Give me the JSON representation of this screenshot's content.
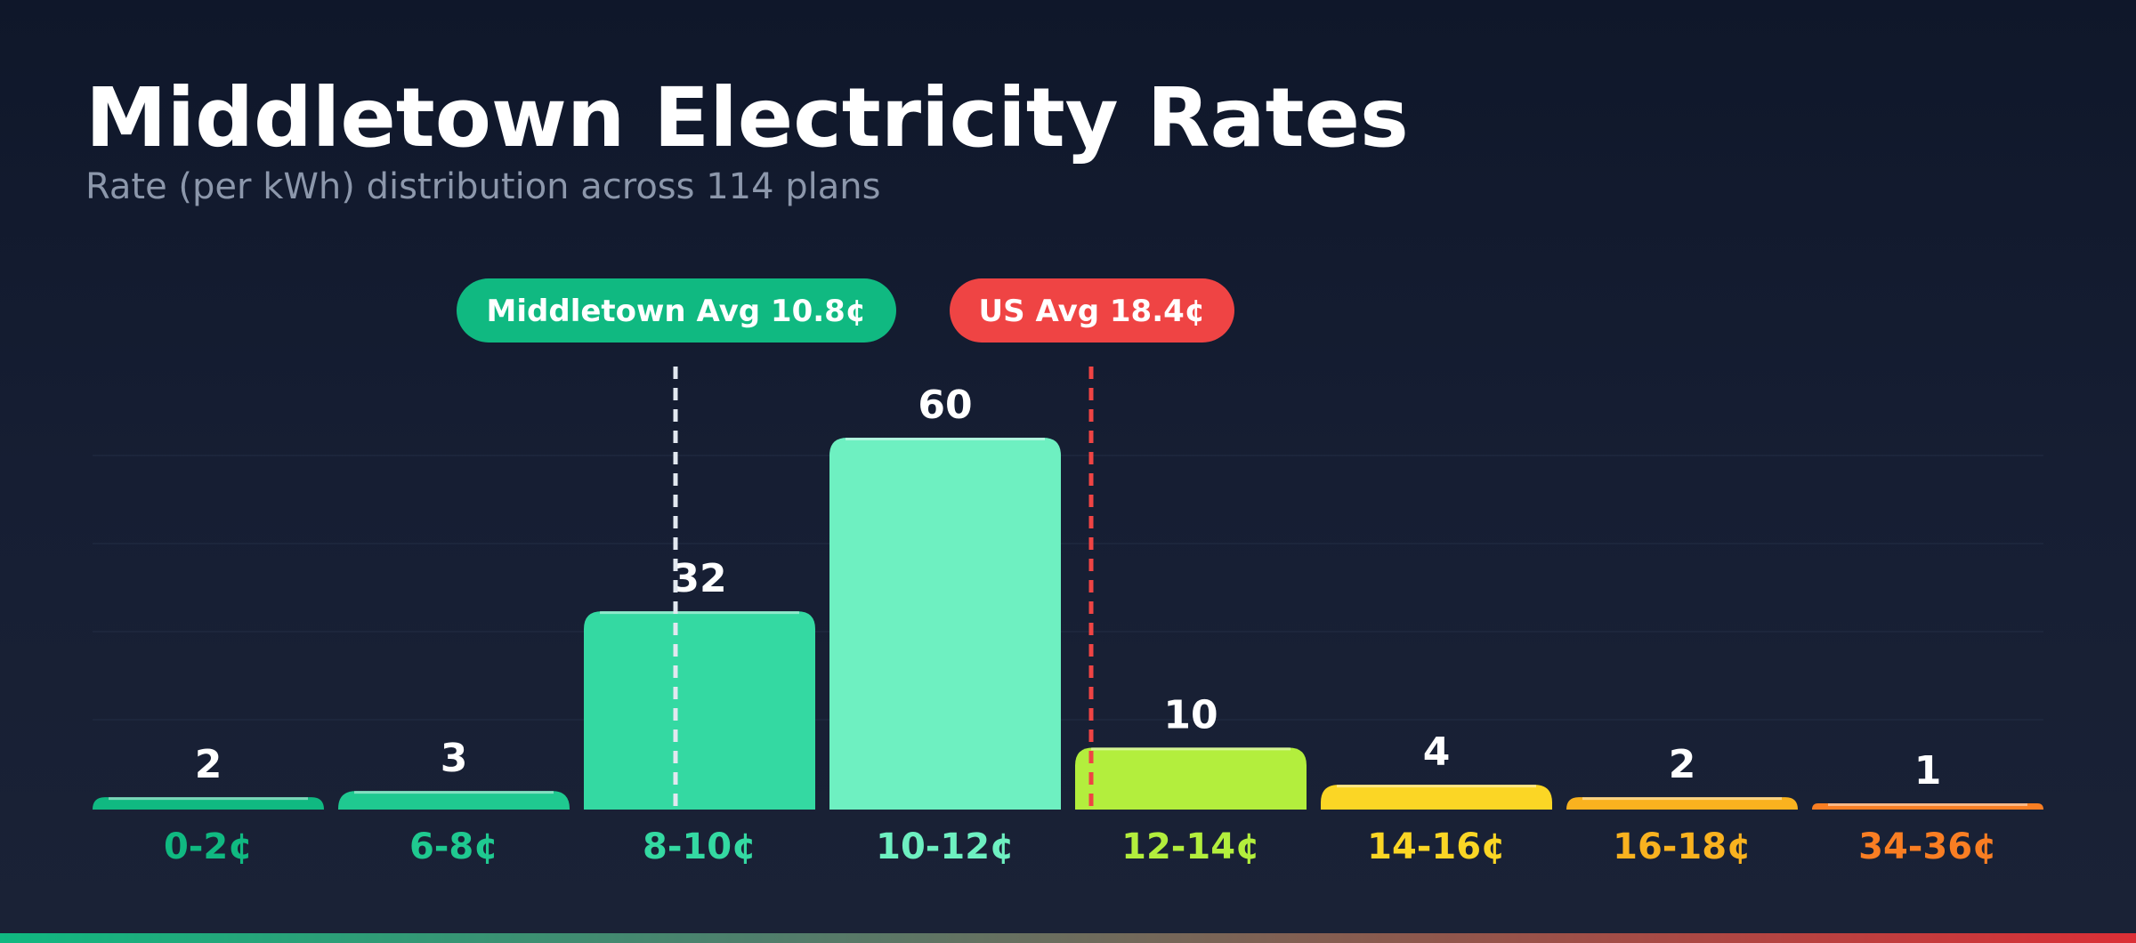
{
  "header": {
    "title": "Middletown Electricity Rates",
    "subtitle": "Rate (per kWh) distribution across 114 plans"
  },
  "chart_data": {
    "type": "bar",
    "title": "Middletown Electricity Rates",
    "subtitle": "Rate (per kWh) distribution across 114 plans",
    "xlabel": "",
    "ylabel": "",
    "ylim": [
      0,
      60
    ],
    "grid": true,
    "categories": [
      "0-2¢",
      "6-8¢",
      "8-10¢",
      "10-12¢",
      "12-14¢",
      "14-16¢",
      "16-18¢",
      "34-36¢"
    ],
    "values": [
      2,
      3,
      32,
      60,
      10,
      4,
      2,
      1
    ],
    "bar_colors": [
      "#10b981",
      "#1fc990",
      "#34d9a2",
      "#6ef0c1",
      "#b3ee3d",
      "#fbd625",
      "#f9b21f",
      "#f97e23"
    ],
    "annotations": [
      {
        "label": "Middletown Avg 10.8¢",
        "x": 10.8,
        "color": "#10b981",
        "line_color": "#e2e8f0"
      },
      {
        "label": "US Avg 18.4¢",
        "x": 18.4,
        "color": "#ef4444",
        "line_color": "#ef4444"
      }
    ]
  }
}
